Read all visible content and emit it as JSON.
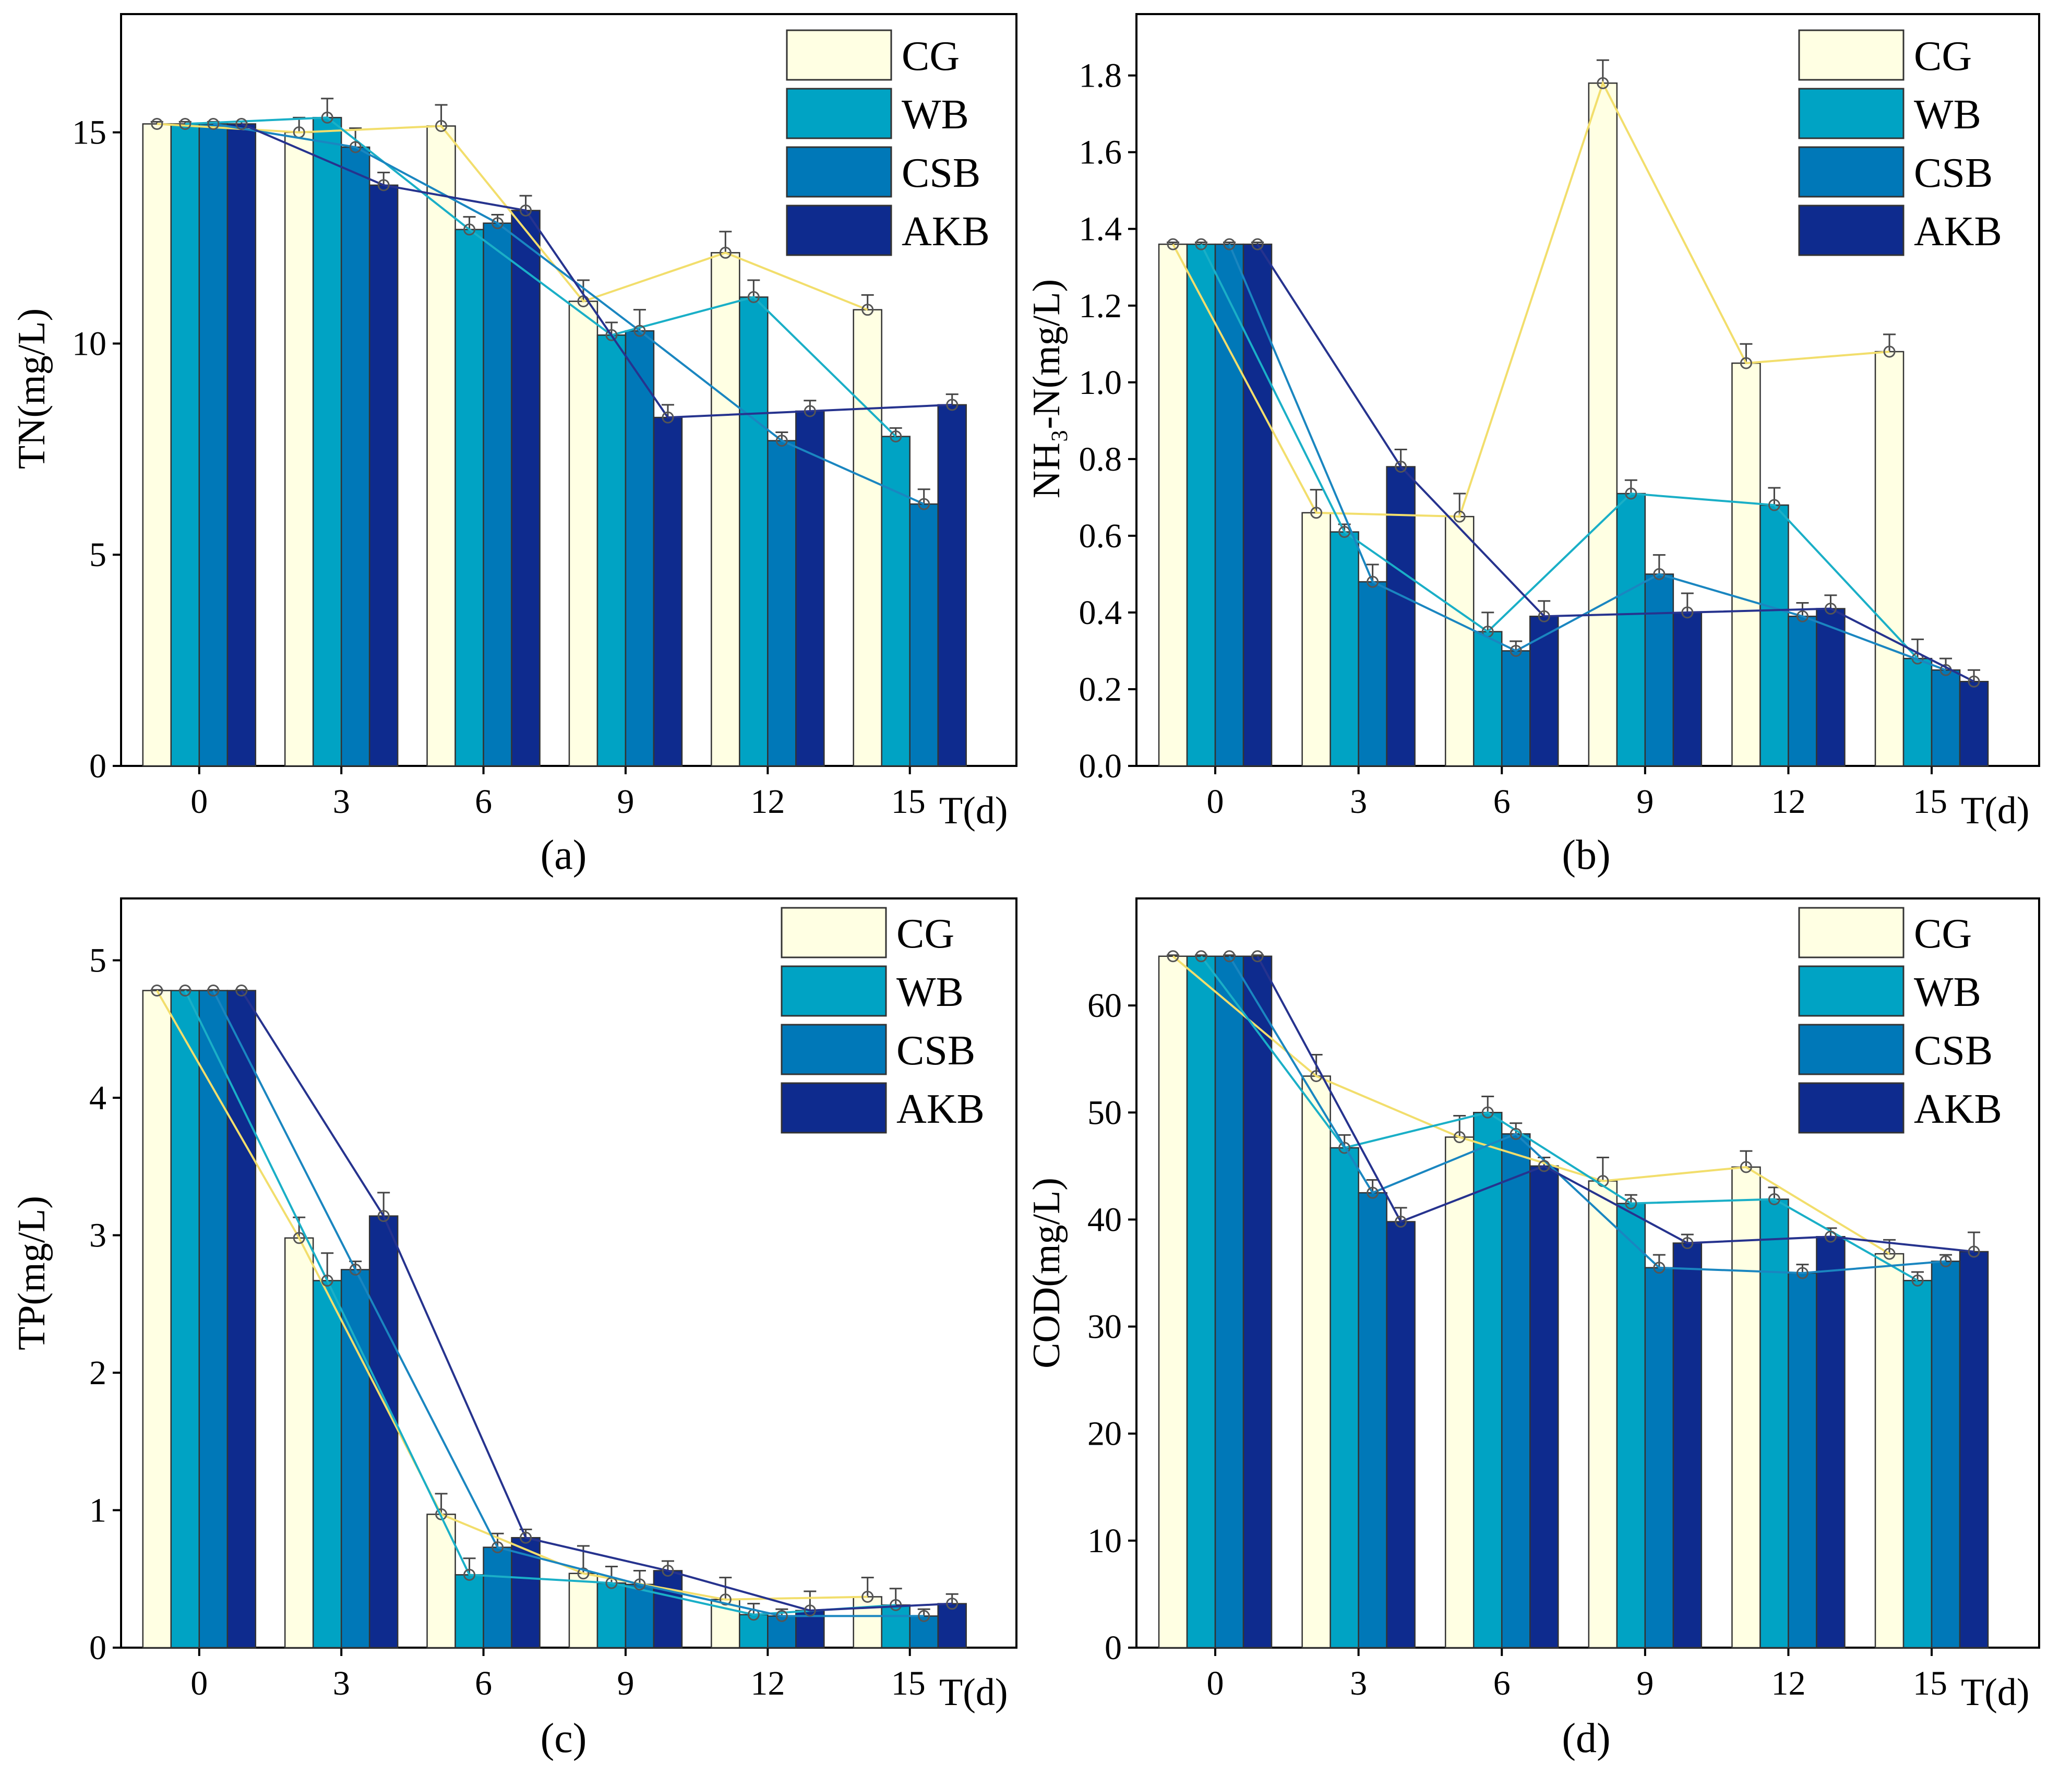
{
  "figure": {
    "series_colors": {
      "CG": "#FFFFE3",
      "WB": "#00A3C4",
      "CSB": "#0078B8",
      "AKB": "#0E2B8E"
    },
    "line_colors": {
      "CG": "#F2DE6C",
      "WB": "#1AAFC7",
      "CSB": "#1A86C0",
      "AKB": "#26338E"
    }
  },
  "chart_data": [
    {
      "id": "a",
      "type": "bar",
      "caption": "(a)",
      "title": "",
      "xlabel": "T(d)",
      "ylabel": "TN(mg/L)",
      "categories": [
        "0",
        "3",
        "6",
        "9",
        "12",
        "15"
      ],
      "ylim": [
        0,
        17.8
      ],
      "yticks": [
        0,
        5,
        10,
        15
      ],
      "legend": "top-right",
      "series": [
        {
          "name": "CG",
          "values": [
            15.2,
            15.0,
            15.15,
            11.0,
            12.15,
            10.8
          ],
          "errors": [
            0.05,
            0.35,
            0.5,
            0.5,
            0.5,
            0.35
          ]
        },
        {
          "name": "WB",
          "values": [
            15.2,
            15.35,
            12.7,
            10.2,
            11.1,
            7.8
          ],
          "errors": [
            0.05,
            0.45,
            0.3,
            0.3,
            0.4,
            0.2
          ]
        },
        {
          "name": "CSB",
          "values": [
            15.2,
            14.65,
            12.85,
            10.3,
            7.7,
            6.2
          ],
          "errors": [
            0.05,
            0.45,
            0.2,
            0.5,
            0.2,
            0.35
          ]
        },
        {
          "name": "AKB",
          "values": [
            15.2,
            13.75,
            13.15,
            8.25,
            8.4,
            8.55
          ],
          "errors": [
            0.05,
            0.3,
            0.35,
            0.3,
            0.25,
            0.25
          ]
        }
      ]
    },
    {
      "id": "b",
      "type": "bar",
      "caption": "(b)",
      "title": "",
      "xlabel": "T(d)",
      "ylabel": "NH₃-N(mg/L)",
      "categories": [
        "0",
        "3",
        "6",
        "9",
        "12",
        "15"
      ],
      "ylim": [
        0,
        1.96
      ],
      "yticks": [
        0.0,
        0.2,
        0.4,
        0.6,
        0.8,
        1.0,
        1.2,
        1.4,
        1.6,
        1.8
      ],
      "legend": "top-right",
      "series": [
        {
          "name": "CG",
          "values": [
            1.36,
            0.66,
            0.65,
            1.78,
            1.05,
            1.08
          ],
          "errors": [
            0.005,
            0.06,
            0.06,
            0.06,
            0.05,
            0.045
          ]
        },
        {
          "name": "WB",
          "values": [
            1.36,
            0.61,
            0.35,
            0.71,
            0.68,
            0.28
          ],
          "errors": [
            0.005,
            0.02,
            0.05,
            0.035,
            0.045,
            0.05
          ]
        },
        {
          "name": "CSB",
          "values": [
            1.36,
            0.48,
            0.3,
            0.5,
            0.39,
            0.25
          ],
          "errors": [
            0.005,
            0.045,
            0.025,
            0.05,
            0.035,
            0.03
          ]
        },
        {
          "name": "AKB",
          "values": [
            1.36,
            0.78,
            0.39,
            0.4,
            0.41,
            0.22
          ],
          "errors": [
            0.005,
            0.045,
            0.04,
            0.05,
            0.035,
            0.03
          ]
        }
      ]
    },
    {
      "id": "c",
      "type": "bar",
      "caption": "(c)",
      "title": "",
      "xlabel": "T(d)",
      "ylabel": "TP(mg/L)",
      "categories": [
        "0",
        "3",
        "6",
        "9",
        "12",
        "15"
      ],
      "ylim": [
        0,
        5.45
      ],
      "yticks": [
        0,
        1,
        2,
        3,
        4,
        5
      ],
      "legend": "top-right",
      "series": [
        {
          "name": "CG",
          "values": [
            4.78,
            2.98,
            0.97,
            0.54,
            0.35,
            0.37
          ],
          "errors": [
            0.005,
            0.15,
            0.15,
            0.2,
            0.16,
            0.14
          ]
        },
        {
          "name": "WB",
          "values": [
            4.78,
            2.67,
            0.53,
            0.47,
            0.24,
            0.31
          ],
          "errors": [
            0.005,
            0.2,
            0.12,
            0.12,
            0.08,
            0.12
          ]
        },
        {
          "name": "CSB",
          "values": [
            4.78,
            2.75,
            0.73,
            0.46,
            0.23,
            0.23
          ],
          "errors": [
            0.005,
            0.06,
            0.1,
            0.1,
            0.05,
            0.05
          ]
        },
        {
          "name": "AKB",
          "values": [
            4.78,
            3.14,
            0.8,
            0.56,
            0.27,
            0.32
          ],
          "errors": [
            0.005,
            0.17,
            0.06,
            0.07,
            0.14,
            0.07
          ]
        }
      ]
    },
    {
      "id": "d",
      "type": "bar",
      "caption": "(d)",
      "title": "",
      "xlabel": "T(d)",
      "ylabel": "COD(mg/L)",
      "categories": [
        "0",
        "3",
        "6",
        "9",
        "12",
        "15"
      ],
      "ylim": [
        0,
        70
      ],
      "yticks": [
        0,
        10,
        20,
        30,
        40,
        50,
        60
      ],
      "legend": "top-right",
      "series": [
        {
          "name": "CG",
          "values": [
            64.6,
            53.4,
            47.7,
            43.6,
            44.9,
            36.8
          ],
          "errors": [
            0.1,
            2.0,
            2.0,
            2.2,
            1.5,
            1.3
          ]
        },
        {
          "name": "WB",
          "values": [
            64.6,
            46.7,
            50.0,
            41.5,
            41.9,
            34.3
          ],
          "errors": [
            0.1,
            1.2,
            1.5,
            0.8,
            1.1,
            0.8
          ]
        },
        {
          "name": "CSB",
          "values": [
            64.6,
            42.5,
            48.0,
            35.5,
            35.0,
            36.1
          ],
          "errors": [
            0.1,
            1.2,
            1.0,
            1.2,
            0.8,
            0.6
          ]
        },
        {
          "name": "AKB",
          "values": [
            64.6,
            39.8,
            45.0,
            37.8,
            38.4,
            37.0
          ],
          "errors": [
            0.1,
            1.3,
            0.8,
            0.8,
            0.8,
            1.8
          ]
        }
      ]
    }
  ]
}
